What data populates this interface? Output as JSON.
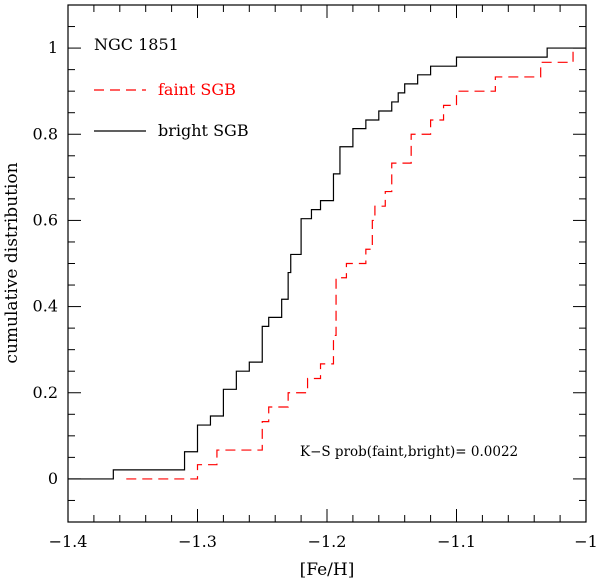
{
  "chart_data": {
    "type": "line",
    "title": "NGC 1851",
    "xlabel": "[Fe/H]",
    "ylabel": "cumulative distribution",
    "xlim": [
      -1.4,
      -1.0
    ],
    "ylim": [
      -0.1,
      1.1
    ],
    "xticks": [
      -1.4,
      -1.3,
      -1.2,
      -1.1,
      -1.0
    ],
    "xtick_labels": [
      "−1.4",
      "−1.3",
      "−1.2",
      "−1.1",
      "−1"
    ],
    "yticks": [
      0,
      0.2,
      0.4,
      0.6,
      0.8,
      1
    ],
    "ytick_labels": [
      "0",
      "0.2",
      "0.4",
      "0.6",
      "0.8",
      "1"
    ],
    "legend": "top-left",
    "series": [
      {
        "name": "faint SGB",
        "style": "dashed",
        "color": "#ff0000",
        "steps": [
          [
            -1.355,
            0.0
          ],
          [
            -1.3,
            0.033
          ],
          [
            -1.285,
            0.067
          ],
          [
            -1.25,
            0.133
          ],
          [
            -1.245,
            0.167
          ],
          [
            -1.23,
            0.2
          ],
          [
            -1.215,
            0.233
          ],
          [
            -1.205,
            0.267
          ],
          [
            -1.195,
            0.333
          ],
          [
            -1.193,
            0.467
          ],
          [
            -1.185,
            0.5
          ],
          [
            -1.17,
            0.533
          ],
          [
            -1.165,
            0.6
          ],
          [
            -1.163,
            0.633
          ],
          [
            -1.155,
            0.667
          ],
          [
            -1.15,
            0.733
          ],
          [
            -1.135,
            0.8
          ],
          [
            -1.12,
            0.833
          ],
          [
            -1.11,
            0.867
          ],
          [
            -1.1,
            0.9
          ],
          [
            -1.07,
            0.933
          ],
          [
            -1.06,
            0.933
          ],
          [
            -1.035,
            0.967
          ],
          [
            -1.01,
            1.0
          ]
        ]
      },
      {
        "name": "bright SGB",
        "style": "solid",
        "color": "#000000",
        "steps": [
          [
            -1.4,
            0.0
          ],
          [
            -1.365,
            0.021
          ],
          [
            -1.31,
            0.063
          ],
          [
            -1.3,
            0.125
          ],
          [
            -1.29,
            0.146
          ],
          [
            -1.28,
            0.208
          ],
          [
            -1.27,
            0.25
          ],
          [
            -1.26,
            0.271
          ],
          [
            -1.25,
            0.354
          ],
          [
            -1.245,
            0.375
          ],
          [
            -1.235,
            0.417
          ],
          [
            -1.23,
            0.479
          ],
          [
            -1.228,
            0.521
          ],
          [
            -1.22,
            0.604
          ],
          [
            -1.212,
            0.625
          ],
          [
            -1.205,
            0.646
          ],
          [
            -1.195,
            0.708
          ],
          [
            -1.19,
            0.771
          ],
          [
            -1.18,
            0.813
          ],
          [
            -1.17,
            0.833
          ],
          [
            -1.16,
            0.854
          ],
          [
            -1.15,
            0.875
          ],
          [
            -1.145,
            0.896
          ],
          [
            -1.14,
            0.917
          ],
          [
            -1.13,
            0.938
          ],
          [
            -1.12,
            0.958
          ],
          [
            -1.1,
            0.979
          ],
          [
            -1.03,
            1.0
          ],
          [
            -1.0,
            1.0
          ]
        ]
      }
    ],
    "annotation": "K−S prob(faint,bright)= 0.0022"
  }
}
